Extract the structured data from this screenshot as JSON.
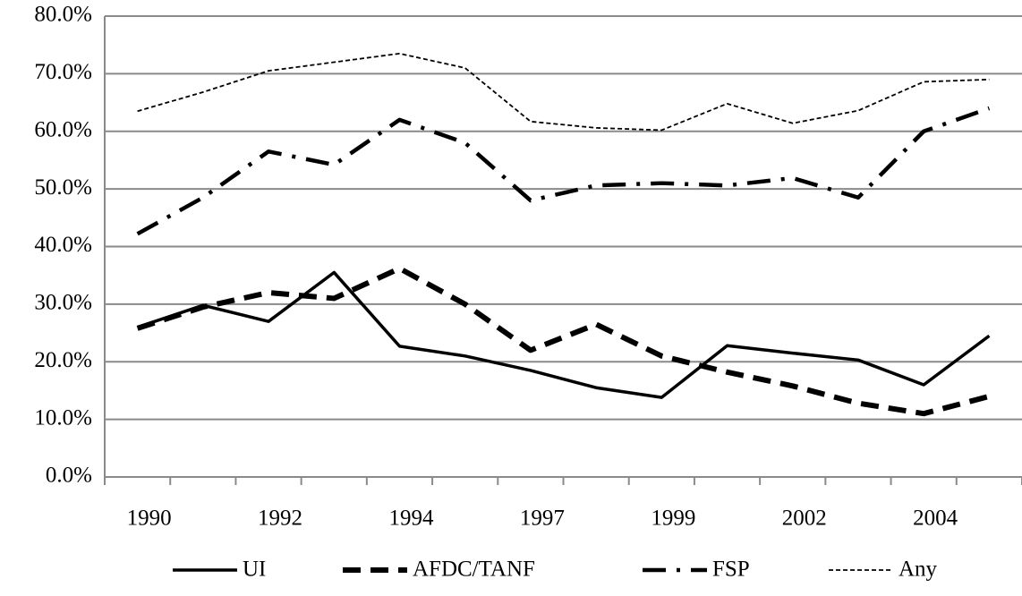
{
  "chart_data": {
    "type": "line",
    "categories": [
      "1990",
      null,
      "1992",
      null,
      "1994",
      null,
      "1997",
      null,
      "1999",
      null,
      "2002",
      null,
      "2004",
      null
    ],
    "series": [
      {
        "name": "UI",
        "color": "#000000",
        "style": "solid",
        "values": [
          26,
          29.8,
          27,
          35.5,
          22.7,
          21,
          18.5,
          15.5,
          13.8,
          22.8,
          21.5,
          20.3,
          16,
          24.5
        ]
      },
      {
        "name": "AFDC/TANF",
        "color": "#000000",
        "style": "dashed",
        "values": [
          25.8,
          29.5,
          32,
          31,
          36.2,
          30,
          22,
          26.5,
          21,
          18.2,
          15.8,
          12.8,
          11,
          14
        ]
      },
      {
        "name": "FSP",
        "color": "#000000",
        "style": "dashdot",
        "values": [
          42.2,
          48.5,
          56.5,
          54.2,
          62,
          58,
          48,
          50.6,
          51,
          50.6,
          51.9,
          48.5,
          60,
          64
        ]
      },
      {
        "name": "Any",
        "color": "#000000",
        "style": "dotted",
        "values": [
          63.5,
          66.8,
          70.5,
          72,
          73.5,
          71,
          61.7,
          60.6,
          60.2,
          64.8,
          61.4,
          63.6,
          68.6,
          69
        ]
      }
    ],
    "ylim": [
      0,
      80
    ],
    "yticks": [
      {
        "value": 0,
        "label": "0.0%"
      },
      {
        "value": 10,
        "label": "10.0%"
      },
      {
        "value": 20,
        "label": "20.0%"
      },
      {
        "value": 30,
        "label": "30.0%"
      },
      {
        "value": 40,
        "label": "40.0%"
      },
      {
        "value": 50,
        "label": "50.0%"
      },
      {
        "value": 60,
        "label": "60.0%"
      },
      {
        "value": 70,
        "label": "70.0%"
      },
      {
        "value": 80,
        "label": "80.0%"
      }
    ],
    "grid": true,
    "legend": "bottom"
  }
}
